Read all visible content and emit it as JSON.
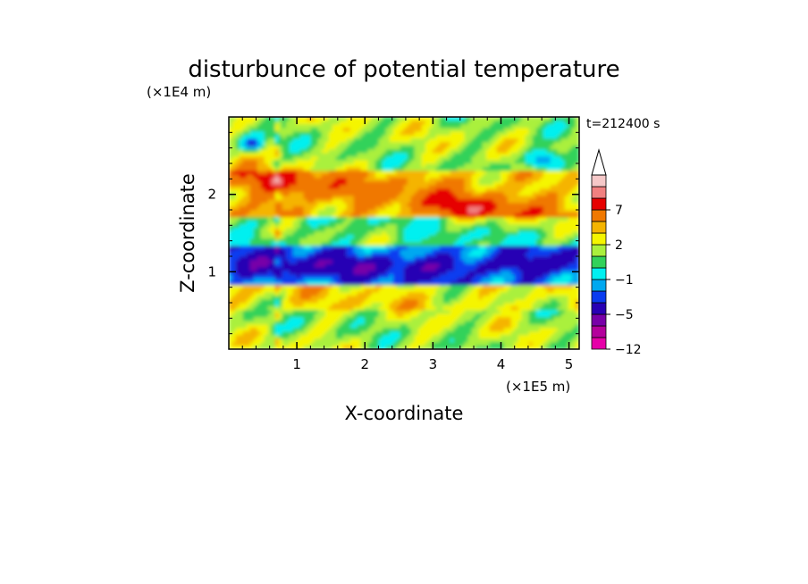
{
  "chart_data": {
    "type": "heatmap",
    "title": "disturbunce of potential temperature",
    "xlabel": "X-coordinate",
    "ylabel": "Z-coordinate",
    "x_unit": "(×1E5 m)",
    "y_unit": "(×1E4 m)",
    "time_label": "t=212400 s",
    "xlim": [
      0,
      5.15
    ],
    "ylim": [
      0,
      3.0
    ],
    "x_ticks": [
      1,
      2,
      3,
      4,
      5
    ],
    "y_ticks": [
      1,
      2
    ],
    "colorbar": {
      "tick_labels": [
        "7",
        "2",
        "−1",
        "−5",
        "−12"
      ],
      "levels": [
        -12,
        -9,
        -7,
        -5,
        -4,
        -3,
        -1,
        0,
        1,
        2,
        3,
        5,
        7,
        9
      ],
      "colors": [
        "#e600a8",
        "#b4009c",
        "#7800a8",
        "#2800b4",
        "#0a3cf0",
        "#00a8f0",
        "#00f0f0",
        "#32d25a",
        "#aaf03c",
        "#f5f500",
        "#f5b400",
        "#f07800",
        "#e60000",
        "#f08080",
        "#f5c8c8"
      ],
      "extend_arrow": "top"
    },
    "grid": false,
    "values_description": [
      {
        "z_range": [
          0.0,
          0.5
        ],
        "dominant": "green-yellow",
        "typical_value": 0.5
      },
      {
        "z_range": [
          0.5,
          0.85
        ],
        "dominant": "yellow",
        "typical_value": 1.5
      },
      {
        "z_range": [
          0.85,
          1.35
        ],
        "dominant": "blue",
        "typical_value": -4
      },
      {
        "z_range": [
          1.35,
          1.7
        ],
        "dominant": "green-cyan",
        "typical_value": -0.5
      },
      {
        "z_range": [
          1.7,
          2.3
        ],
        "dominant": "yellow-orange",
        "typical_value": 2.5
      },
      {
        "z_range": [
          2.3,
          3.0
        ],
        "dominant": "cyan-yellow",
        "typical_value": 0.5
      }
    ]
  }
}
